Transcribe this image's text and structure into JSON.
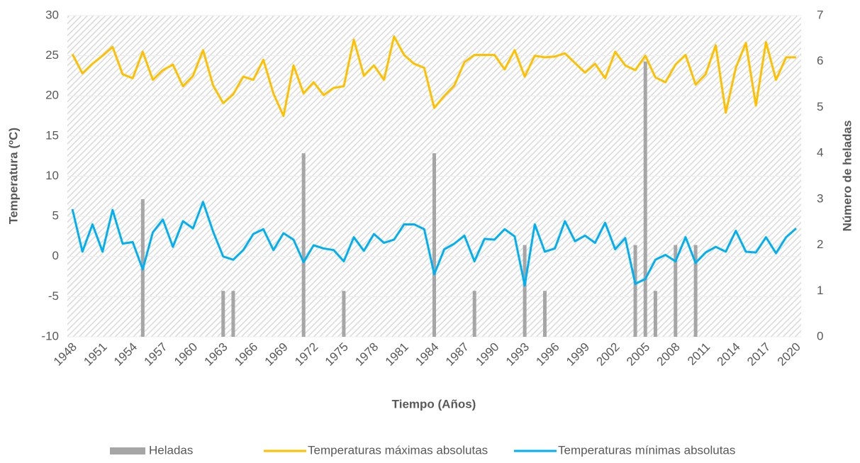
{
  "chart_data": {
    "type": "bar_line",
    "x_label": "Tiempo (Años)",
    "y_label": "Temperatura (ºC)",
    "y2_label": "Número de heladas",
    "categories": [
      1948,
      null,
      null,
      1951,
      null,
      null,
      1954,
      null,
      null,
      1957,
      null,
      null,
      1960,
      null,
      null,
      1963,
      null,
      null,
      1966,
      null,
      null,
      1969,
      null,
      null,
      1972,
      null,
      null,
      1975,
      null,
      null,
      1978,
      null,
      null,
      1981,
      null,
      null,
      1984,
      null,
      null,
      1987,
      null,
      null,
      1990,
      null,
      null,
      1993,
      null,
      null,
      1996,
      null,
      null,
      1999,
      null,
      null,
      2002,
      null,
      null,
      2005,
      null,
      null,
      2008,
      null,
      null,
      2011,
      null,
      null,
      2014,
      null,
      null,
      2017,
      null,
      null,
      2020
    ],
    "series": [
      {
        "name": "Heladas",
        "type": "bar",
        "axis": "y2",
        "color": "#a6a6a6",
        "values": [
          0,
          0,
          0,
          0,
          0,
          0,
          0,
          3,
          0,
          0,
          0,
          0,
          0,
          0,
          0,
          1,
          1,
          0,
          0,
          0,
          0,
          0,
          0,
          4,
          0,
          0,
          0,
          1,
          0,
          0,
          0,
          0,
          0,
          0,
          0,
          0,
          4,
          0,
          0,
          0,
          1,
          0,
          0,
          0,
          0,
          2,
          0,
          1,
          0,
          0,
          0,
          0,
          0,
          0,
          0,
          0,
          2,
          6,
          1,
          0,
          2,
          0,
          2,
          0,
          0,
          0,
          0,
          0,
          0,
          0,
          0,
          0,
          0
        ]
      },
      {
        "name": "Temperaturas máximas absolutas",
        "type": "line",
        "color": "#ffc000",
        "values": [
          25.2,
          22.8,
          24,
          25,
          26.1,
          22.7,
          22.2,
          25.5,
          22,
          23.2,
          23.9,
          21.2,
          22.5,
          25.7,
          21.3,
          19.1,
          20.2,
          22.4,
          22,
          24.5,
          20.3,
          17.5,
          23.8,
          20.3,
          21.7,
          20.1,
          21,
          21.2,
          27,
          22.5,
          23.8,
          22,
          27.4,
          25.1,
          24,
          23.5,
          18.5,
          20,
          21.3,
          24.2,
          25.1,
          25.1,
          25.1,
          23.3,
          25.7,
          22.4,
          25,
          24.8,
          24.9,
          25.3,
          24.1,
          22.9,
          24,
          22.2,
          25.5,
          23.8,
          23.2,
          25,
          22.3,
          21.7,
          23.9,
          25.1,
          21.4,
          22.7,
          26.3,
          17.9,
          23.5,
          26.6,
          18.8,
          26.7,
          22,
          24.8,
          24.8
        ]
      },
      {
        "name": "Temperaturas mínimas absolutas",
        "type": "line",
        "color": "#00b0f0",
        "values": [
          5.9,
          0.6,
          4,
          0.6,
          5.8,
          1.6,
          1.8,
          -1.6,
          3,
          4.6,
          1.2,
          4.4,
          3.5,
          6.8,
          3.1,
          0,
          -0.4,
          0.8,
          2.8,
          3.4,
          0.8,
          2.9,
          2.1,
          -0.7,
          1.4,
          1,
          0.8,
          -0.6,
          2.4,
          0.7,
          2.8,
          1.7,
          2.1,
          4,
          4,
          3.4,
          -2.2,
          0.9,
          1.6,
          2.6,
          -0.6,
          2.2,
          2.1,
          3.4,
          2.5,
          -3.6,
          4,
          0.6,
          1,
          4.4,
          1.9,
          2.6,
          1.7,
          4.2,
          0.9,
          2.3,
          -3.4,
          -2.8,
          -0.4,
          0.2,
          -0.6,
          2.4,
          -0.8,
          0.5,
          1.2,
          0.6,
          3.2,
          0.6,
          0.5,
          2.4,
          0.4,
          2.4,
          3.5
        ]
      }
    ],
    "ylim": [
      -10,
      30
    ],
    "yticks": [
      -10,
      -5,
      0,
      5,
      10,
      15,
      20,
      25,
      30
    ],
    "y2lim": [
      0,
      7
    ],
    "y2ticks": [
      0,
      1,
      2,
      3,
      4,
      5,
      6,
      7
    ],
    "legend": "bottom"
  }
}
